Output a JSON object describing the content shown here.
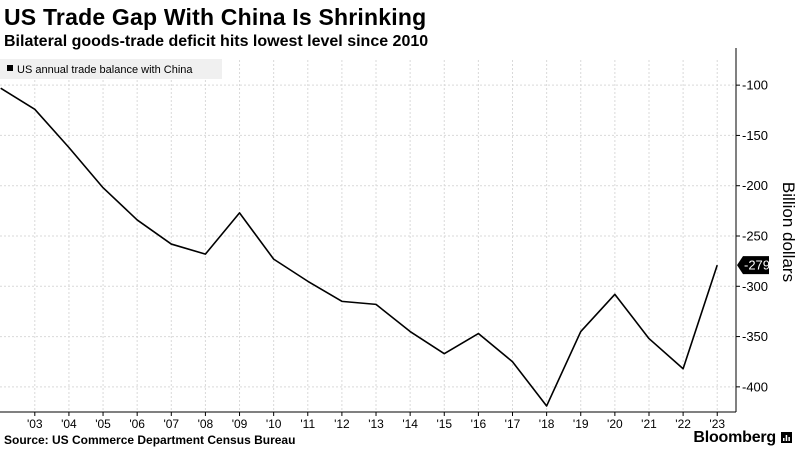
{
  "header": {
    "title": "US Trade Gap With China Is Shrinking",
    "subtitle": "Bilateral goods-trade deficit hits lowest level since 2010"
  },
  "footer": {
    "source": "Source: US Commerce Department Census Bureau",
    "brand": "Bloomberg"
  },
  "colors": {
    "line": "#000000",
    "grid": "#d9d9d9",
    "legend_bg": "#f0f0f0",
    "label_bg": "#000000"
  },
  "chart_data": {
    "type": "line",
    "title": "US Trade Gap With China Is Shrinking",
    "subtitle": "Bilateral goods-trade deficit hits lowest level since 2010",
    "ylabel": "Billion dollars",
    "xlabel": "",
    "legend": "US annual trade balance with China",
    "legend_position": "top-left",
    "ylim": [
      -425,
      -75
    ],
    "yticks": [
      -100,
      -150,
      -200,
      -250,
      -300,
      -350,
      -400
    ],
    "ytick_labels": [
      "-100",
      "-150",
      "-200",
      "-250",
      "-300",
      "-350",
      "-400"
    ],
    "xlim": [
      2001.98,
      2023.55
    ],
    "x": [
      2002,
      2003,
      2004,
      2005,
      2006,
      2007,
      2008,
      2009,
      2010,
      2011,
      2012,
      2013,
      2014,
      2015,
      2016,
      2017,
      2018,
      2019,
      2020,
      2021,
      2022,
      2023
    ],
    "values": [
      -103,
      -124,
      -162,
      -202,
      -234,
      -258,
      -268,
      -227,
      -273,
      -295,
      -315,
      -318,
      -345,
      -367,
      -347,
      -375,
      -419,
      -345,
      -308,
      -352,
      -382,
      -279
    ],
    "xtick_values": [
      2003,
      2004,
      2005,
      2006,
      2007,
      2008,
      2009,
      2010,
      2011,
      2012,
      2013,
      2014,
      2015,
      2016,
      2017,
      2018,
      2019,
      2020,
      2021,
      2022,
      2023
    ],
    "xtick_labels": [
      "'03",
      "'04",
      "'05",
      "'06",
      "'07",
      "'08",
      "'09",
      "'10",
      "'11",
      "'12",
      "'13",
      "'14",
      "'15",
      "'16",
      "'17",
      "'18",
      "'19",
      "'20",
      "'21",
      "'22",
      "'23"
    ],
    "last_value_label": "-279",
    "grid": true
  }
}
